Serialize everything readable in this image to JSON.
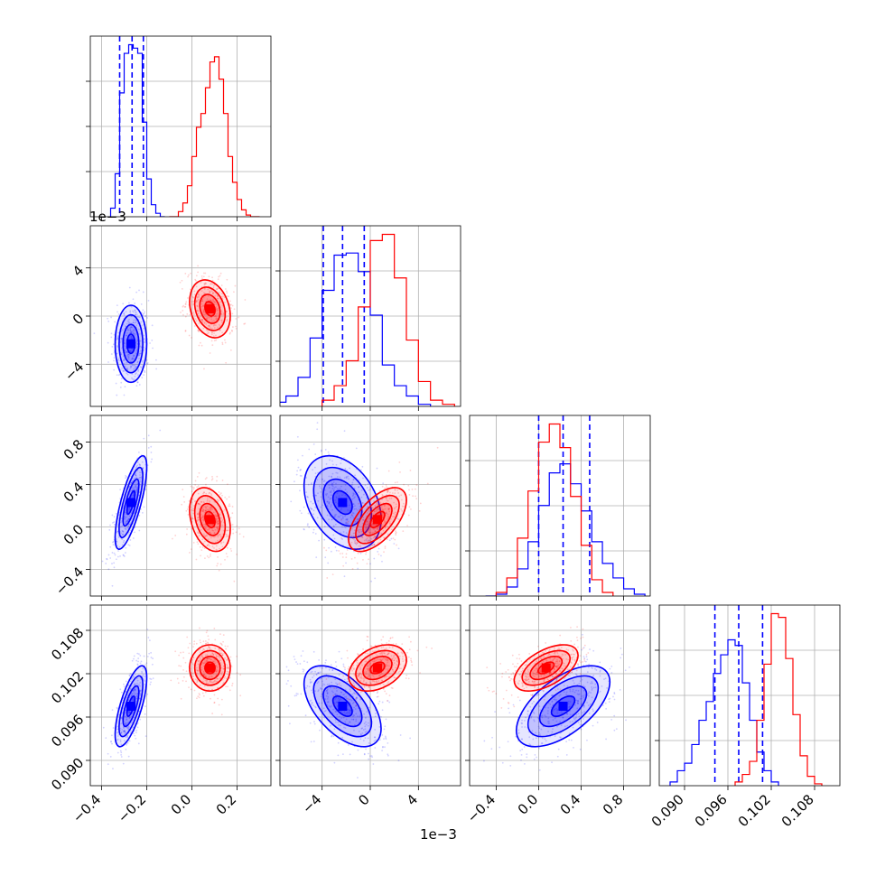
{
  "chart_data": {
    "type": "corner",
    "panel_count": 4,
    "offset_labels": [
      "1e−3",
      "1e−3"
    ],
    "colors": {
      "blue": "#0000ff",
      "red": "#ff0000"
    },
    "grid": true,
    "params": [
      {
        "range": [
          -0.45,
          0.35
        ],
        "ticks": [
          -0.4,
          -0.2,
          0.0,
          0.2
        ],
        "tick_labels": [
          "−0.4",
          "−0.2",
          "0.0",
          "0.2"
        ],
        "scale_note": ""
      },
      {
        "range": [
          -7.5,
          7.5
        ],
        "ticks": [
          -4,
          0,
          4
        ],
        "tick_labels": [
          "−4",
          "0",
          "4"
        ],
        "scale_note": "1e-3"
      },
      {
        "range": [
          -0.65,
          1.05
        ],
        "ticks": [
          -0.4,
          0.0,
          0.4,
          0.8
        ],
        "tick_labels": [
          "−0.4",
          "0.0",
          "0.4",
          "0.8"
        ],
        "scale_note": ""
      },
      {
        "range": [
          0.0865,
          0.1115
        ],
        "ticks": [
          0.09,
          0.096,
          0.102,
          0.108
        ],
        "tick_labels": [
          "0.090",
          "0.096",
          "0.102",
          "0.108"
        ],
        "scale_note": ""
      }
    ],
    "series": [
      {
        "color": "#0000ff",
        "means": [
          -0.27,
          -2.3,
          0.23,
          0.0975
        ],
        "sigmas": [
          0.035,
          1.6,
          0.22,
          0.0028
        ],
        "quantiles": [
          [
            -0.32,
            -0.265,
            -0.215
          ],
          [
            -3.9,
            -2.3,
            -0.5
          ],
          [
            0.0,
            0.23,
            0.48
          ],
          [
            0.0942,
            0.0975,
            0.1008
          ]
        ],
        "hist": [
          {
            "edges": [
              -0.36,
              -0.34,
              -0.32,
              -0.3,
              -0.28,
              -0.26,
              -0.24,
              -0.22,
              -0.2,
              -0.18,
              -0.16,
              -0.14,
              -0.12
            ],
            "counts": [
              0.05,
              0.25,
              0.72,
              0.95,
              1.0,
              0.98,
              0.95,
              0.55,
              0.22,
              0.07,
              0.02,
              0.0
            ]
          },
          {
            "edges": [
              -8,
              -7,
              -6,
              -5,
              -4,
              -3,
              -2,
              -1,
              0,
              1,
              2,
              3,
              4,
              5
            ],
            "counts": [
              0.02,
              0.05,
              0.14,
              0.33,
              0.56,
              0.73,
              0.74,
              0.65,
              0.44,
              0.2,
              0.1,
              0.05,
              0.01
            ]
          },
          {
            "edges": [
              -0.5,
              -0.4,
              -0.3,
              -0.2,
              -0.1,
              0.0,
              0.1,
              0.2,
              0.3,
              0.4,
              0.5,
              0.6,
              0.7,
              0.8,
              0.9,
              1.0
            ],
            "counts": [
              0.0,
              0.01,
              0.05,
              0.15,
              0.3,
              0.5,
              0.68,
              0.73,
              0.62,
              0.47,
              0.3,
              0.18,
              0.1,
              0.04,
              0.01
            ]
          },
          {
            "edges": [
              0.088,
              0.089,
              0.09,
              0.091,
              0.092,
              0.093,
              0.094,
              0.095,
              0.096,
              0.097,
              0.098,
              0.099,
              0.1,
              0.101,
              0.102,
              0.103
            ],
            "counts": [
              0.02,
              0.08,
              0.12,
              0.22,
              0.35,
              0.45,
              0.6,
              0.7,
              0.78,
              0.75,
              0.55,
              0.35,
              0.18,
              0.08,
              0.02
            ]
          }
        ],
        "corr": {
          "1-0": 0.0,
          "2-0": 0.75,
          "2-1": -0.35,
          "3-0": 0.7,
          "3-1": -0.55,
          "3-2": 0.6
        }
      },
      {
        "color": "#ff0000",
        "means": [
          0.08,
          0.6,
          0.07,
          0.1028
        ],
        "sigmas": [
          0.045,
          1.2,
          0.15,
          0.0016
        ],
        "quantiles": [],
        "hist": [
          {
            "edges": [
              -0.1,
              -0.08,
              -0.06,
              -0.04,
              -0.02,
              0.0,
              0.02,
              0.04,
              0.06,
              0.08,
              0.1,
              0.12,
              0.14,
              0.16,
              0.18,
              0.2,
              0.22,
              0.24,
              0.26,
              0.28,
              0.3
            ],
            "counts": [
              0.0,
              0.0,
              0.03,
              0.08,
              0.18,
              0.35,
              0.52,
              0.6,
              0.75,
              0.9,
              0.93,
              0.8,
              0.6,
              0.35,
              0.2,
              0.1,
              0.04,
              0.01,
              0.0,
              0.0
            ]
          },
          {
            "edges": [
              -4,
              -3,
              -2,
              -1,
              0,
              1,
              2,
              3,
              4,
              5,
              6,
              7
            ],
            "counts": [
              0.03,
              0.1,
              0.22,
              0.48,
              0.8,
              0.83,
              0.62,
              0.32,
              0.12,
              0.03,
              0.01
            ]
          },
          {
            "edges": [
              -0.4,
              -0.3,
              -0.2,
              -0.1,
              0.0,
              0.1,
              0.2,
              0.3,
              0.4,
              0.5,
              0.6,
              0.7
            ],
            "counts": [
              0.02,
              0.1,
              0.32,
              0.58,
              0.85,
              0.95,
              0.82,
              0.55,
              0.28,
              0.09,
              0.02
            ]
          },
          {
            "edges": [
              0.097,
              0.098,
              0.099,
              0.1,
              0.101,
              0.102,
              0.103,
              0.104,
              0.105,
              0.106,
              0.107,
              0.108,
              0.109
            ],
            "counts": [
              0.02,
              0.06,
              0.13,
              0.35,
              0.65,
              0.92,
              0.9,
              0.68,
              0.38,
              0.16,
              0.05,
              0.01
            ]
          }
        ],
        "corr": {
          "1-0": -0.25,
          "2-0": -0.3,
          "2-1": 0.6,
          "3-0": 0.0,
          "3-1": 0.35,
          "3-2": 0.55
        }
      }
    ]
  }
}
